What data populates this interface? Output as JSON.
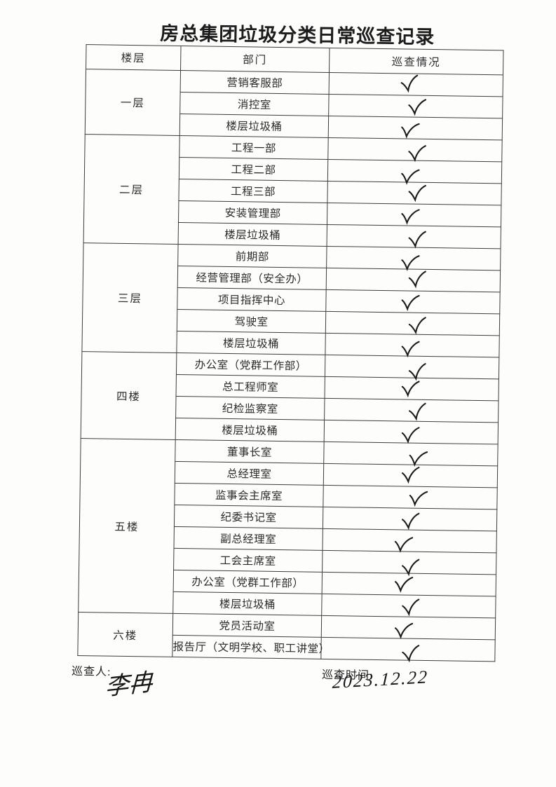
{
  "title": "房总集团垃圾分类日常巡查记录",
  "table": {
    "headers": [
      "楼层",
      "部门",
      "巡查情况"
    ],
    "check_symbol": "✓",
    "groups": [
      {
        "floor": "一层",
        "departments": [
          {
            "name": "营销客服部",
            "status": "✓"
          },
          {
            "name": "消控室",
            "status": "✓"
          },
          {
            "name": "楼层垃圾桶",
            "status": "✓"
          }
        ]
      },
      {
        "floor": "二层",
        "departments": [
          {
            "name": "工程一部",
            "status": "✓"
          },
          {
            "name": "工程二部",
            "status": "✓"
          },
          {
            "name": "工程三部",
            "status": "✓"
          },
          {
            "name": "安装管理部",
            "status": "✓"
          },
          {
            "name": "楼层垃圾桶",
            "status": "✓"
          }
        ]
      },
      {
        "floor": "三层",
        "departments": [
          {
            "name": "前期部",
            "status": "✓"
          },
          {
            "name": "经营管理部（安全办）",
            "status": "✓"
          },
          {
            "name": "项目指挥中心",
            "status": "✓"
          },
          {
            "name": "驾驶室",
            "status": "✓"
          },
          {
            "name": "楼层垃圾桶",
            "status": "✓"
          }
        ]
      },
      {
        "floor": "四楼",
        "departments": [
          {
            "name": "办公室（党群工作部）",
            "status": "✓"
          },
          {
            "name": "总工程师室",
            "status": "✓"
          },
          {
            "name": "纪检监察室",
            "status": "✓"
          },
          {
            "name": "楼层垃圾桶",
            "status": "✓"
          }
        ]
      },
      {
        "floor": "五楼",
        "departments": [
          {
            "name": "董事长室",
            "status": "✓"
          },
          {
            "name": "总经理室",
            "status": "✓"
          },
          {
            "name": "监事会主席室",
            "status": "✓"
          },
          {
            "name": "纪委书记室",
            "status": "✓"
          },
          {
            "name": "副总经理室",
            "status": "✓"
          },
          {
            "name": "工会主席室",
            "status": "✓"
          },
          {
            "name": "办公室（党群工作部）",
            "status": "✓"
          },
          {
            "name": "楼层垃圾桶",
            "status": "✓"
          }
        ]
      },
      {
        "floor": "六楼",
        "departments": [
          {
            "name": "党员活动室",
            "status": "✓"
          },
          {
            "name": "报告厅（文明学校、职工讲堂）",
            "status": "✓"
          }
        ]
      }
    ]
  },
  "footer": {
    "inspector_label": "巡查人:",
    "inspector_signature": "李冉",
    "time_label": "巡查时间:",
    "time_value": "2023.12.22"
  },
  "colors": {
    "ink": "#1c1c1c",
    "border": "#3d3d3d",
    "paper": "#fdfdfc"
  }
}
